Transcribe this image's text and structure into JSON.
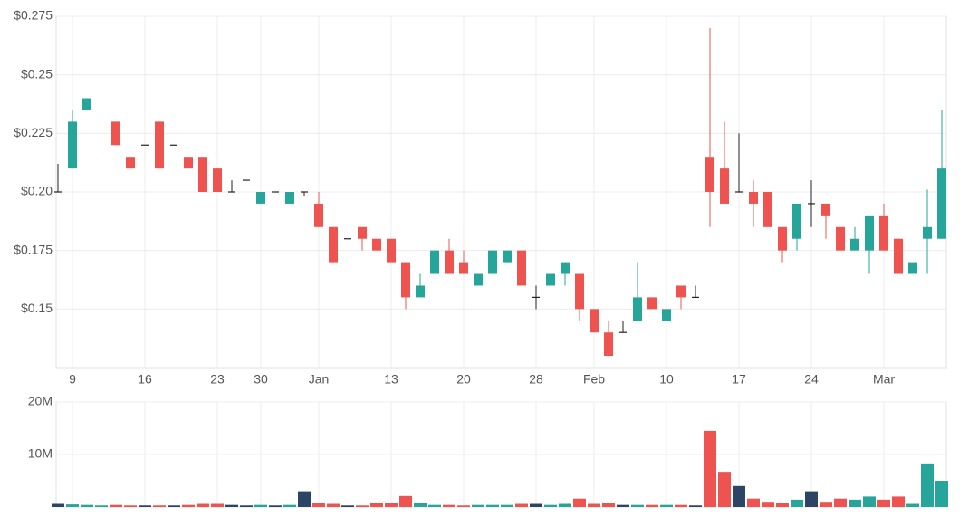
{
  "chart_data": [
    {
      "type": "candlestick",
      "categories": [
        null,
        "9",
        null,
        null,
        null,
        null,
        "16",
        null,
        null,
        null,
        null,
        "23",
        null,
        null,
        "30",
        null,
        null,
        null,
        "Jan",
        null,
        null,
        null,
        null,
        "13",
        null,
        null,
        null,
        null,
        "20",
        null,
        null,
        null,
        null,
        "28",
        null,
        null,
        null,
        "Feb",
        null,
        null,
        null,
        null,
        "10",
        null,
        null,
        null,
        null,
        "17",
        null,
        null,
        null,
        null,
        "24",
        null,
        null,
        null,
        null,
        "Mar",
        null,
        null,
        null,
        null
      ],
      "open": [
        0.2,
        0.21,
        0.235,
        null,
        0.23,
        0.215,
        0.22,
        0.23,
        0.22,
        0.215,
        0.215,
        0.21,
        0.2,
        0.205,
        0.195,
        0.2,
        0.195,
        0.2,
        0.195,
        0.185,
        0.18,
        0.185,
        0.18,
        0.18,
        0.17,
        0.155,
        0.165,
        0.175,
        0.17,
        0.16,
        0.165,
        0.17,
        0.175,
        0.155,
        0.16,
        0.165,
        0.165,
        0.15,
        0.14,
        0.14,
        0.145,
        0.155,
        0.145,
        0.16,
        0.155,
        0.215,
        0.21,
        0.2,
        0.2,
        0.2,
        0.185,
        0.18,
        0.195,
        0.195,
        0.185,
        0.175,
        0.175,
        0.19,
        0.18,
        0.165,
        0.18,
        0.18
      ],
      "high": [
        0.212,
        0.235,
        0.24,
        null,
        0.23,
        0.215,
        0.22,
        0.23,
        0.22,
        0.215,
        0.215,
        0.21,
        0.205,
        0.205,
        0.2,
        0.2,
        0.2,
        0.2,
        0.2,
        0.185,
        0.18,
        0.185,
        0.18,
        0.18,
        0.17,
        0.165,
        0.175,
        0.18,
        0.175,
        0.165,
        0.175,
        0.175,
        0.175,
        0.16,
        0.165,
        0.17,
        0.165,
        0.15,
        0.145,
        0.145,
        0.17,
        0.155,
        0.15,
        0.16,
        0.16,
        0.27,
        0.23,
        0.225,
        0.205,
        0.2,
        0.185,
        0.195,
        0.205,
        0.195,
        0.185,
        0.185,
        0.19,
        0.195,
        0.18,
        0.17,
        0.201,
        0.235
      ],
      "low": [
        0.2,
        0.21,
        0.235,
        null,
        0.22,
        0.21,
        0.22,
        0.21,
        0.22,
        0.21,
        0.2,
        0.2,
        0.2,
        0.205,
        0.195,
        0.2,
        0.195,
        0.198,
        0.185,
        0.17,
        0.18,
        0.175,
        0.175,
        0.17,
        0.15,
        0.155,
        0.165,
        0.165,
        0.165,
        0.16,
        0.165,
        0.17,
        0.16,
        0.15,
        0.16,
        0.16,
        0.145,
        0.14,
        0.13,
        0.14,
        0.145,
        0.15,
        0.145,
        0.15,
        0.155,
        0.185,
        0.195,
        0.2,
        0.185,
        0.185,
        0.17,
        0.175,
        0.185,
        0.18,
        0.175,
        0.175,
        0.165,
        0.175,
        0.165,
        0.165,
        0.165,
        0.18
      ],
      "close": [
        0.2,
        0.23,
        0.24,
        null,
        0.22,
        0.21,
        0.22,
        0.21,
        0.22,
        0.21,
        0.2,
        0.2,
        0.2,
        0.205,
        0.2,
        0.2,
        0.2,
        0.2,
        0.185,
        0.17,
        0.18,
        0.18,
        0.175,
        0.17,
        0.155,
        0.16,
        0.175,
        0.165,
        0.165,
        0.165,
        0.175,
        0.175,
        0.16,
        0.155,
        0.165,
        0.17,
        0.15,
        0.14,
        0.13,
        0.14,
        0.155,
        0.15,
        0.15,
        0.155,
        0.155,
        0.2,
        0.195,
        0.2,
        0.195,
        0.185,
        0.175,
        0.195,
        0.195,
        0.19,
        0.175,
        0.18,
        0.19,
        0.175,
        0.165,
        0.17,
        0.185,
        0.21
      ],
      "up_color": "#26a69a",
      "down_color": "#ef5350",
      "flat_color": "#2c4466",
      "ylim": [
        0.125,
        0.275
      ],
      "yticks": [
        {
          "value": 0.15,
          "label": "$0.15"
        },
        {
          "value": 0.175,
          "label": "$0.175"
        },
        {
          "value": 0.2,
          "label": "$0.20"
        },
        {
          "value": 0.225,
          "label": "$0.225"
        },
        {
          "value": 0.25,
          "label": "$0.25"
        },
        {
          "value": 0.275,
          "label": "$0.275"
        }
      ],
      "grid": true
    },
    {
      "type": "bar",
      "values": [
        600000,
        500000,
        400000,
        300000,
        400000,
        300000,
        300000,
        300000,
        300000,
        400000,
        600000,
        600000,
        400000,
        300000,
        400000,
        300000,
        400000,
        3000000,
        800000,
        600000,
        300000,
        300000,
        800000,
        800000,
        2100000,
        800000,
        400000,
        400000,
        300000,
        400000,
        400000,
        400000,
        600000,
        600000,
        400000,
        600000,
        1600000,
        600000,
        800000,
        400000,
        400000,
        400000,
        400000,
        400000,
        300000,
        14500000,
        6700000,
        4000000,
        1600000,
        1000000,
        800000,
        1400000,
        3000000,
        1000000,
        1600000,
        1400000,
        2000000,
        1400000,
        2000000,
        600000,
        8300000,
        5000000
      ],
      "ylim": [
        0,
        20000000
      ],
      "yticks": [
        {
          "value": 10000000,
          "label": "10M"
        },
        {
          "value": 20000000,
          "label": "20M"
        }
      ],
      "grid": true
    }
  ]
}
